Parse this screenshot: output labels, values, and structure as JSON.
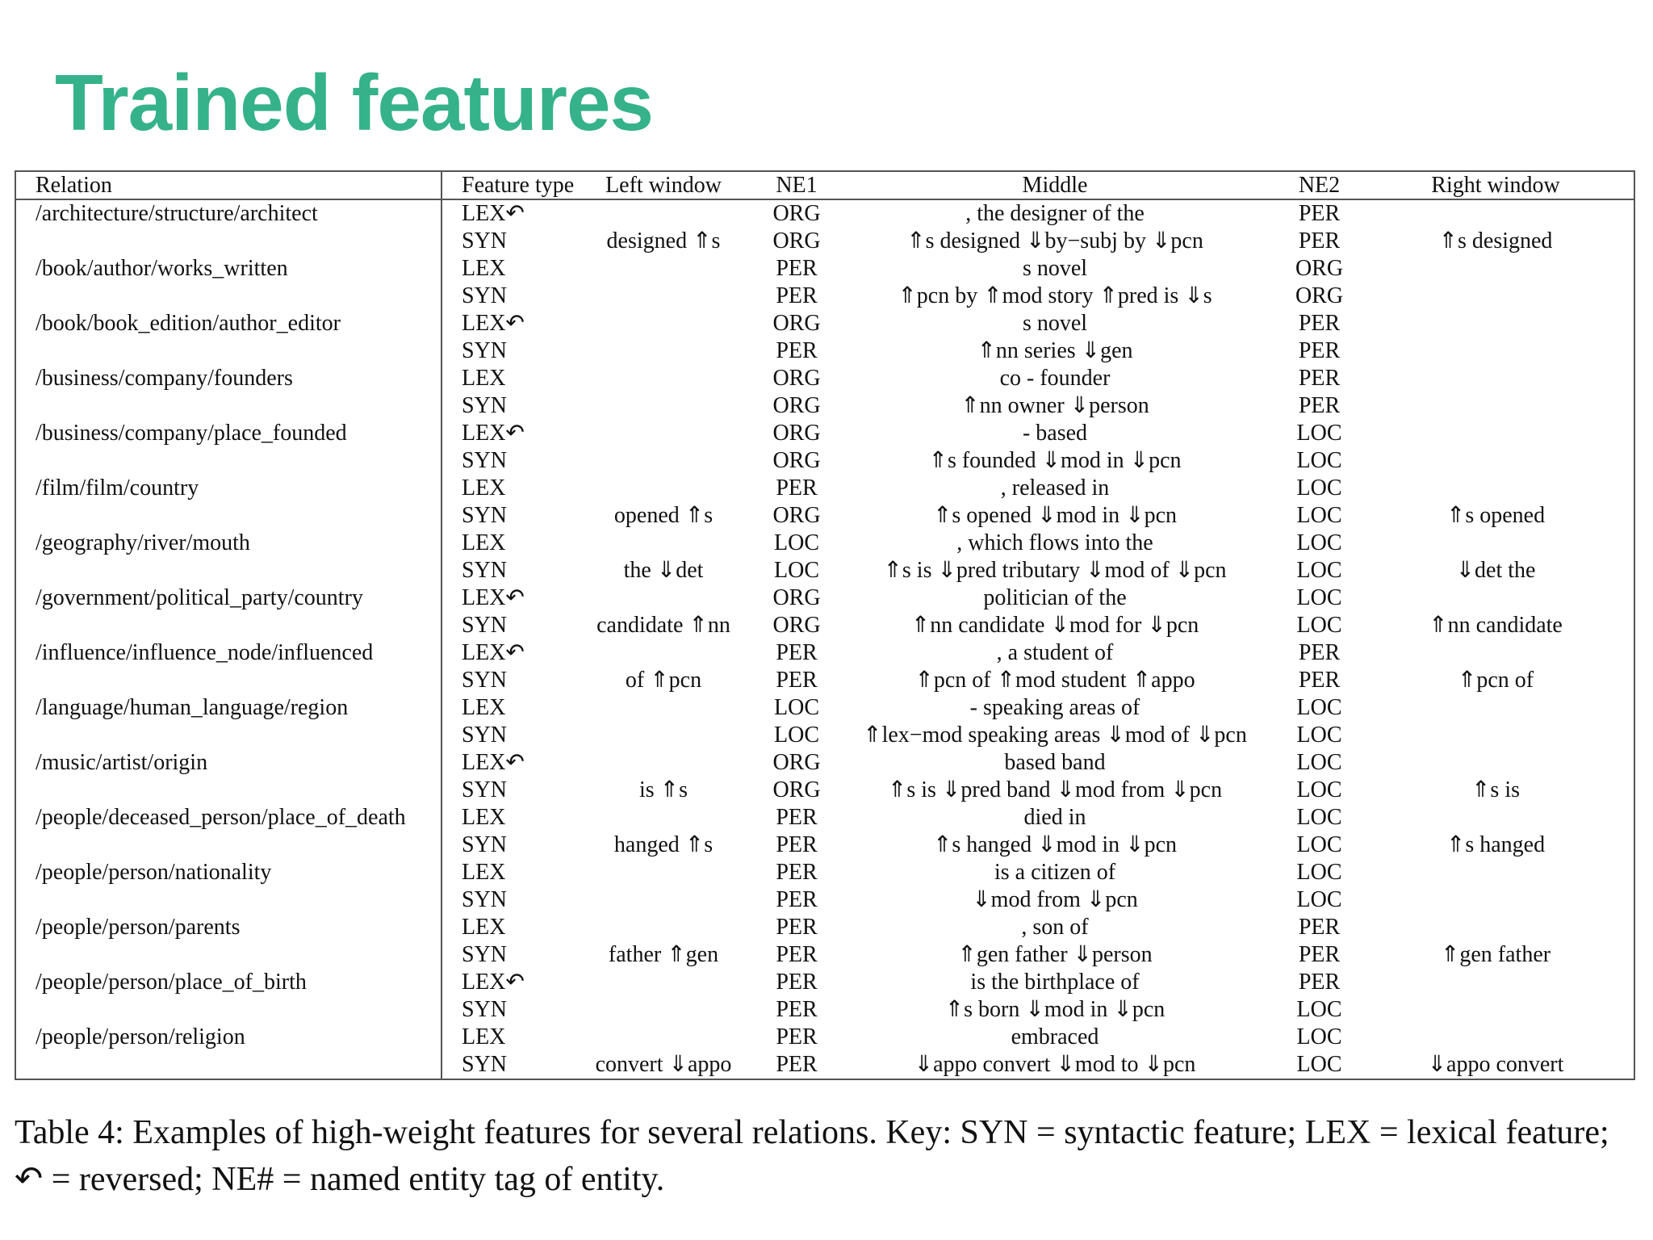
{
  "title": "Trained features",
  "table": {
    "headers": [
      "Relation",
      "Feature type",
      "Left window",
      "NE1",
      "Middle",
      "NE2",
      "Right window"
    ],
    "rows": [
      {
        "relation": "/architecture/structure/architect",
        "type": "LEX↶",
        "left": "",
        "ne1": "ORG",
        "middle": ", the designer of the",
        "ne2": "PER",
        "right": ""
      },
      {
        "relation": "",
        "type": "SYN",
        "left": "designed ⇑s",
        "ne1": "ORG",
        "middle": "⇑s designed ⇓by−subj by ⇓pcn",
        "ne2": "PER",
        "right": "⇑s designed"
      },
      {
        "relation": "/book/author/works_written",
        "type": "LEX",
        "left": "",
        "ne1": "PER",
        "middle": "s novel",
        "ne2": "ORG",
        "right": ""
      },
      {
        "relation": "",
        "type": "SYN",
        "left": "",
        "ne1": "PER",
        "middle": "⇑pcn by ⇑mod story ⇑pred is ⇓s",
        "ne2": "ORG",
        "right": ""
      },
      {
        "relation": "/book/book_edition/author_editor",
        "type": "LEX↶",
        "left": "",
        "ne1": "ORG",
        "middle": "s novel",
        "ne2": "PER",
        "right": ""
      },
      {
        "relation": "",
        "type": "SYN",
        "left": "",
        "ne1": "PER",
        "middle": "⇑nn series ⇓gen",
        "ne2": "PER",
        "right": ""
      },
      {
        "relation": "/business/company/founders",
        "type": "LEX",
        "left": "",
        "ne1": "ORG",
        "middle": "co - founder",
        "ne2": "PER",
        "right": ""
      },
      {
        "relation": "",
        "type": "SYN",
        "left": "",
        "ne1": "ORG",
        "middle": "⇑nn owner ⇓person",
        "ne2": "PER",
        "right": ""
      },
      {
        "relation": "/business/company/place_founded",
        "type": "LEX↶",
        "left": "",
        "ne1": "ORG",
        "middle": "- based",
        "ne2": "LOC",
        "right": ""
      },
      {
        "relation": "",
        "type": "SYN",
        "left": "",
        "ne1": "ORG",
        "middle": "⇑s founded ⇓mod in ⇓pcn",
        "ne2": "LOC",
        "right": ""
      },
      {
        "relation": "/film/film/country",
        "type": "LEX",
        "left": "",
        "ne1": "PER",
        "middle": ", released in",
        "ne2": "LOC",
        "right": ""
      },
      {
        "relation": "",
        "type": "SYN",
        "left": "opened ⇑s",
        "ne1": "ORG",
        "middle": "⇑s opened ⇓mod in ⇓pcn",
        "ne2": "LOC",
        "right": "⇑s opened"
      },
      {
        "relation": "/geography/river/mouth",
        "type": "LEX",
        "left": "",
        "ne1": "LOC",
        "middle": ", which flows into the",
        "ne2": "LOC",
        "right": ""
      },
      {
        "relation": "",
        "type": "SYN",
        "left": "the ⇓det",
        "ne1": "LOC",
        "middle": "⇑s is ⇓pred tributary ⇓mod of ⇓pcn",
        "ne2": "LOC",
        "right": "⇓det the"
      },
      {
        "relation": "/government/political_party/country",
        "type": "LEX↶",
        "left": "",
        "ne1": "ORG",
        "middle": "politician of the",
        "ne2": "LOC",
        "right": ""
      },
      {
        "relation": "",
        "type": "SYN",
        "left": "candidate ⇑nn",
        "ne1": "ORG",
        "middle": "⇑nn candidate ⇓mod for ⇓pcn",
        "ne2": "LOC",
        "right": "⇑nn candidate"
      },
      {
        "relation": "/influence/influence_node/influenced",
        "type": "LEX↶",
        "left": "",
        "ne1": "PER",
        "middle": ", a student of",
        "ne2": "PER",
        "right": ""
      },
      {
        "relation": "",
        "type": "SYN",
        "left": "of ⇑pcn",
        "ne1": "PER",
        "middle": "⇑pcn of ⇑mod student ⇑appo",
        "ne2": "PER",
        "right": "⇑pcn of"
      },
      {
        "relation": "/language/human_language/region",
        "type": "LEX",
        "left": "",
        "ne1": "LOC",
        "middle": "- speaking areas of",
        "ne2": "LOC",
        "right": ""
      },
      {
        "relation": "",
        "type": "SYN",
        "left": "",
        "ne1": "LOC",
        "middle": "⇑lex−mod speaking areas ⇓mod of ⇓pcn",
        "ne2": "LOC",
        "right": ""
      },
      {
        "relation": "/music/artist/origin",
        "type": "LEX↶",
        "left": "",
        "ne1": "ORG",
        "middle": "based band",
        "ne2": "LOC",
        "right": ""
      },
      {
        "relation": "",
        "type": "SYN",
        "left": "is ⇑s",
        "ne1": "ORG",
        "middle": "⇑s is ⇓pred band ⇓mod from ⇓pcn",
        "ne2": "LOC",
        "right": "⇑s is"
      },
      {
        "relation": "/people/deceased_person/place_of_death",
        "type": "LEX",
        "left": "",
        "ne1": "PER",
        "middle": "died in",
        "ne2": "LOC",
        "right": ""
      },
      {
        "relation": "",
        "type": "SYN",
        "left": "hanged ⇑s",
        "ne1": "PER",
        "middle": "⇑s hanged ⇓mod in ⇓pcn",
        "ne2": "LOC",
        "right": "⇑s hanged"
      },
      {
        "relation": "/people/person/nationality",
        "type": "LEX",
        "left": "",
        "ne1": "PER",
        "middle": "is a citizen of",
        "ne2": "LOC",
        "right": ""
      },
      {
        "relation": "",
        "type": "SYN",
        "left": "",
        "ne1": "PER",
        "middle": "⇓mod from ⇓pcn",
        "ne2": "LOC",
        "right": ""
      },
      {
        "relation": "/people/person/parents",
        "type": "LEX",
        "left": "",
        "ne1": "PER",
        "middle": ", son of",
        "ne2": "PER",
        "right": ""
      },
      {
        "relation": "",
        "type": "SYN",
        "left": "father ⇑gen",
        "ne1": "PER",
        "middle": "⇑gen father ⇓person",
        "ne2": "PER",
        "right": "⇑gen father"
      },
      {
        "relation": "/people/person/place_of_birth",
        "type": "LEX↶",
        "left": "",
        "ne1": "PER",
        "middle": "is the birthplace of",
        "ne2": "PER",
        "right": ""
      },
      {
        "relation": "",
        "type": "SYN",
        "left": "",
        "ne1": "PER",
        "middle": "⇑s born ⇓mod in ⇓pcn",
        "ne2": "LOC",
        "right": ""
      },
      {
        "relation": "/people/person/religion",
        "type": "LEX",
        "left": "",
        "ne1": "PER",
        "middle": "embraced",
        "ne2": "LOC",
        "right": ""
      },
      {
        "relation": "",
        "type": "SYN",
        "left": "convert ⇓appo",
        "ne1": "PER",
        "middle": "⇓appo convert ⇓mod to ⇓pcn",
        "ne2": "LOC",
        "right": "⇓appo convert"
      }
    ]
  },
  "caption": "Table 4: Examples of high-weight features for several relations. Key: SYN = syntactic feature; LEX = lexical feature; ↶ = reversed; NE# = named entity tag of entity."
}
